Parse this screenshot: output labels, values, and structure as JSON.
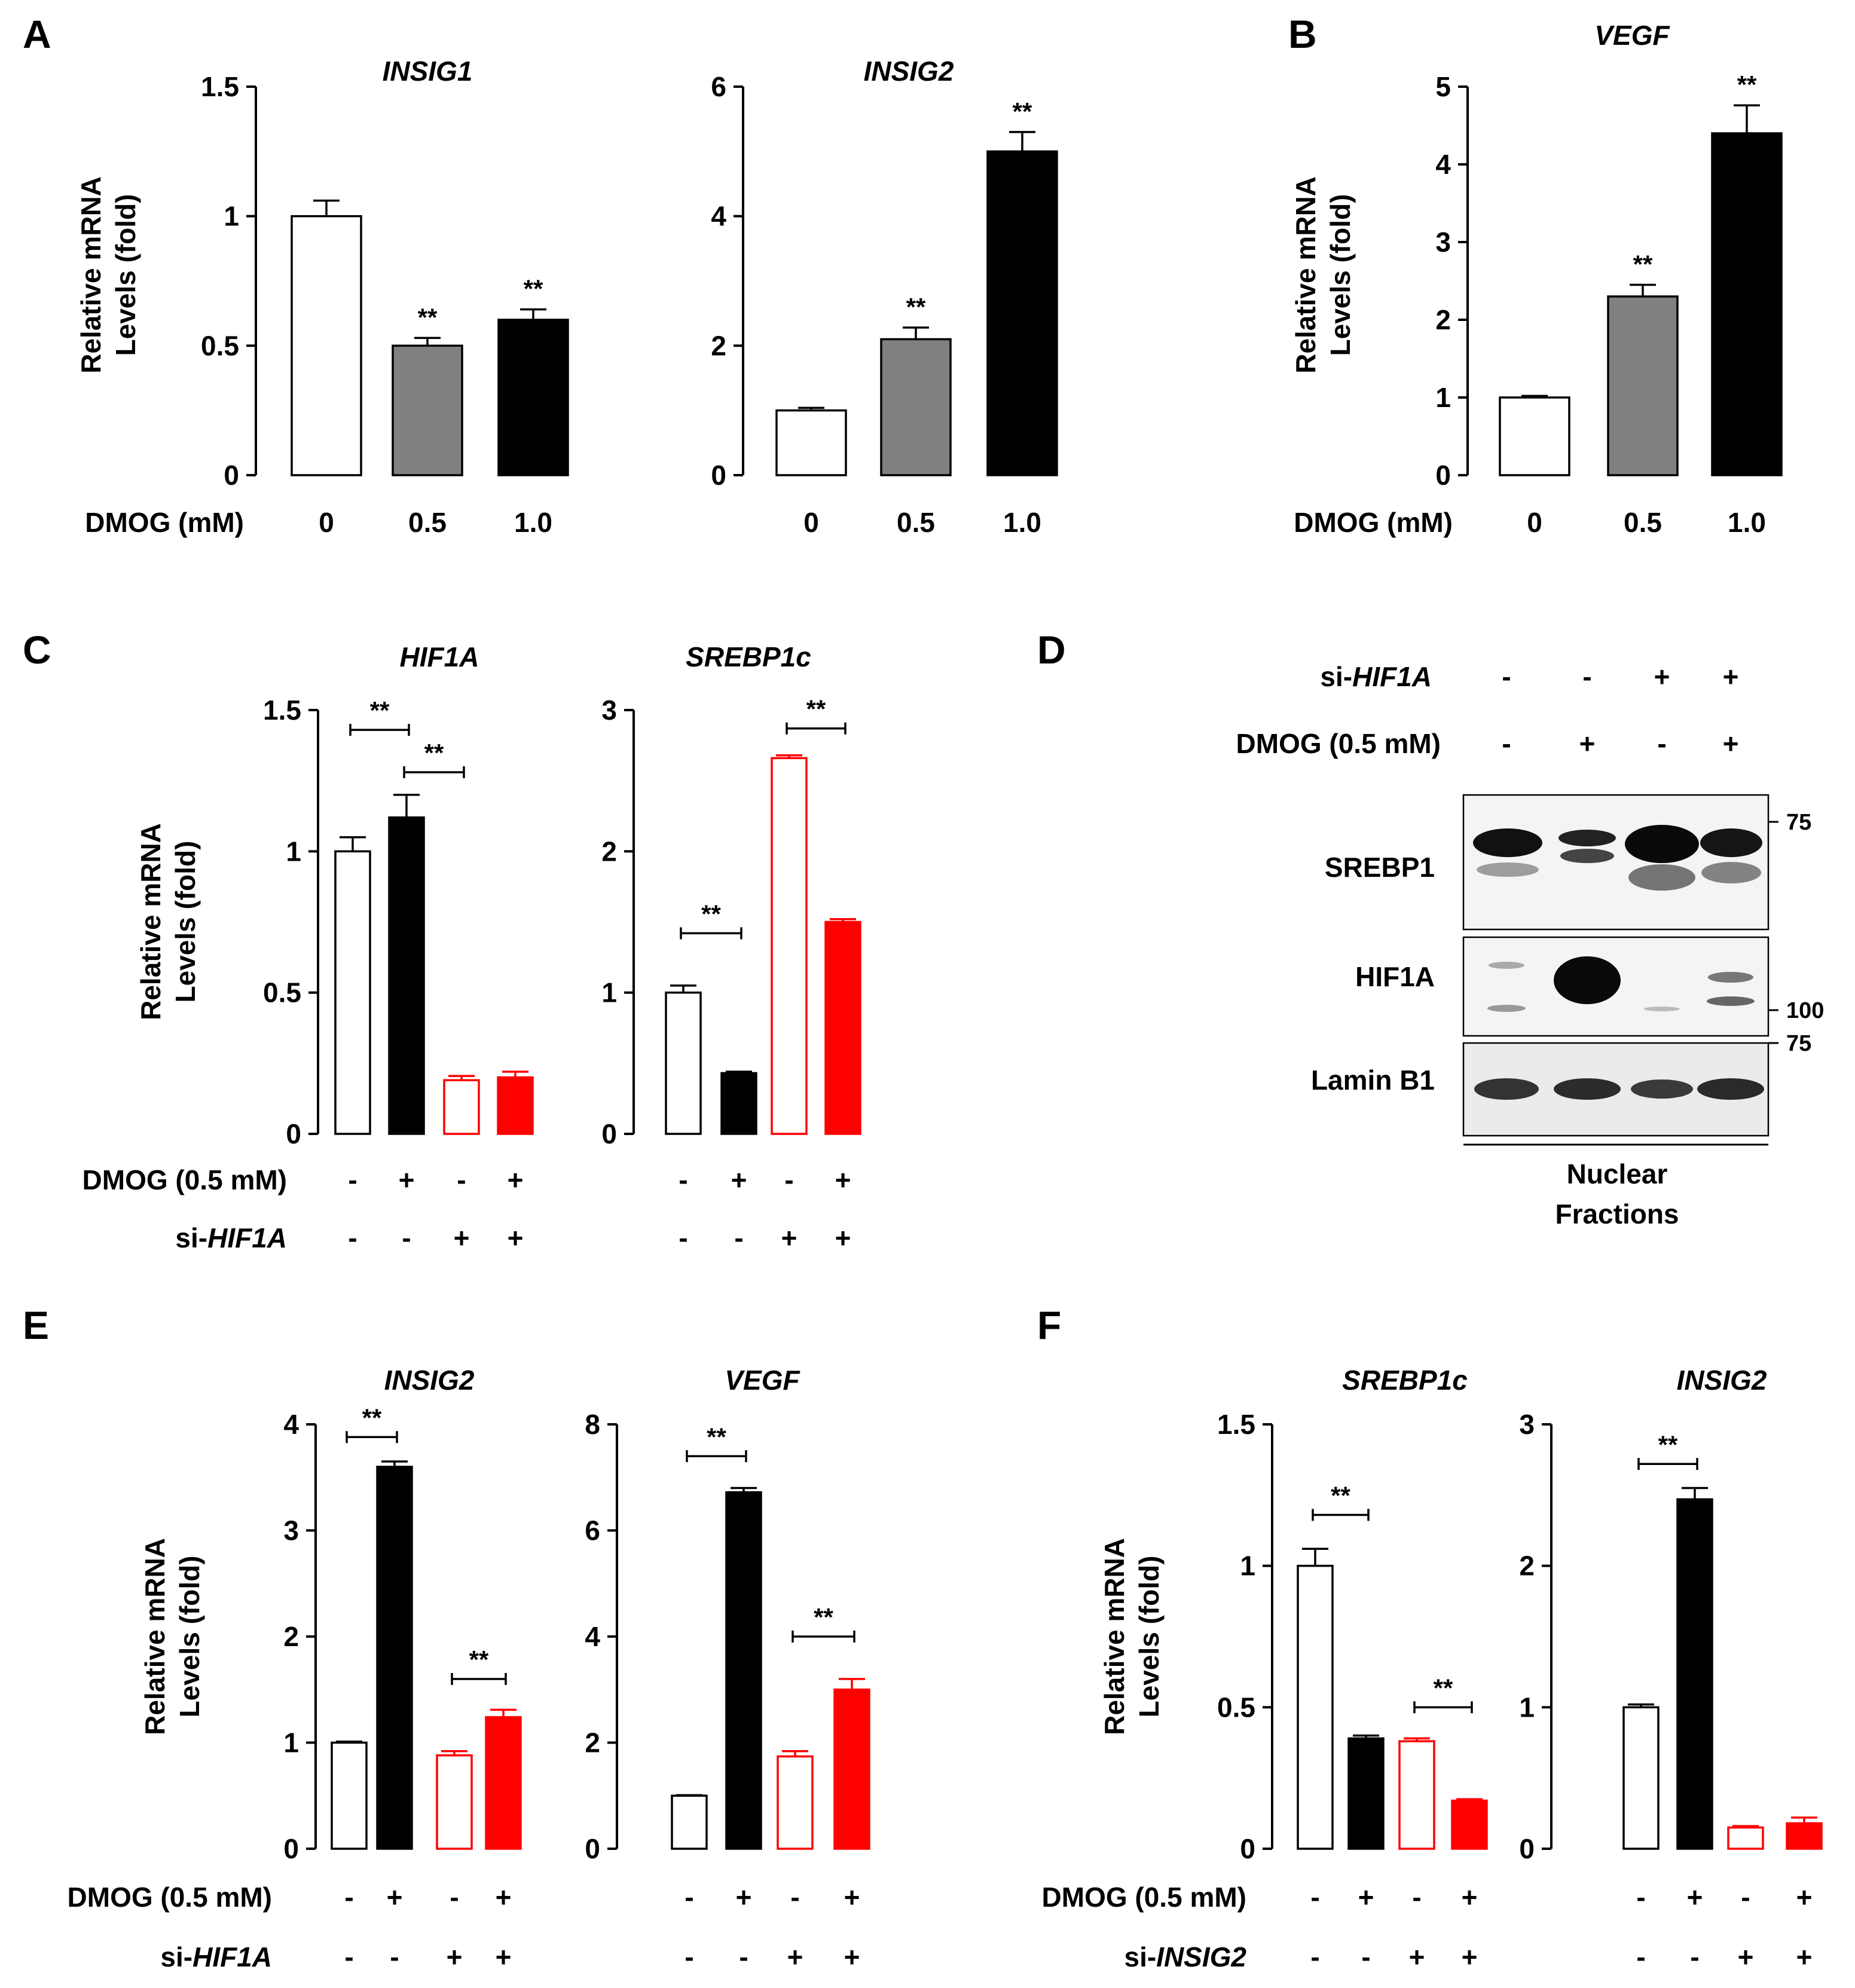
{
  "colors": {
    "black": "#000000",
    "gray": "#808080",
    "red": "#ff0000",
    "white": "#ffffff",
    "blot_bg": "#f2f2f2"
  },
  "common": {
    "ylabel_line1": "Relative mRNA",
    "ylabel_line2": "Levels (fold)",
    "significance": "**"
  },
  "chart_data": [
    {
      "panel": "A",
      "type": "bar",
      "title": "INSIG1",
      "xlabel": "DMOG (mM)",
      "ylabel": "Relative mRNA Levels (fold)",
      "ylim": [
        0,
        1.5
      ],
      "yticks": [
        0,
        0.5,
        1,
        1.5
      ],
      "ytick_labels": [
        "0",
        "0.5",
        "1",
        "1.5"
      ],
      "categories": [
        "0",
        "0.5",
        "1.0"
      ],
      "values": [
        1.0,
        0.5,
        0.6
      ],
      "errors": [
        0.06,
        0.03,
        0.04
      ],
      "fills": [
        "white",
        "gray",
        "black"
      ],
      "stars_above": [
        false,
        true,
        true
      ],
      "brackets": []
    },
    {
      "panel": "A",
      "type": "bar",
      "title": "INSIG2",
      "xlabel": "",
      "ylabel": "",
      "ylim": [
        0,
        6
      ],
      "yticks": [
        0,
        2,
        4,
        6
      ],
      "ytick_labels": [
        "0",
        "2",
        "4",
        "6"
      ],
      "categories": [
        "0",
        "0.5",
        "1.0"
      ],
      "values": [
        1.0,
        2.1,
        5.0
      ],
      "errors": [
        0.04,
        0.18,
        0.3
      ],
      "fills": [
        "white",
        "gray",
        "black"
      ],
      "stars_above": [
        false,
        true,
        true
      ],
      "brackets": []
    },
    {
      "panel": "B",
      "type": "bar",
      "title": "VEGF",
      "xlabel": "DMOG (mM)",
      "ylabel": "Relative mRNA Levels (fold)",
      "ylim": [
        0,
        5
      ],
      "yticks": [
        0,
        1,
        2,
        3,
        4,
        5
      ],
      "ytick_labels": [
        "0",
        "1",
        "2",
        "3",
        "4",
        "5"
      ],
      "categories": [
        "0",
        "0.5",
        "1.0"
      ],
      "values": [
        1.0,
        2.3,
        4.4
      ],
      "errors": [
        0.02,
        0.15,
        0.36
      ],
      "fills": [
        "white",
        "gray",
        "black"
      ],
      "stars_above": [
        false,
        true,
        true
      ],
      "brackets": []
    },
    {
      "panel": "C",
      "type": "bar",
      "title": "HIF1A",
      "ylabel": "Relative mRNA Levels (fold)",
      "ylim": [
        0,
        1.5
      ],
      "yticks": [
        0,
        0.5,
        1,
        1.5
      ],
      "ytick_labels": [
        "0",
        "0.5",
        "1",
        "1.5"
      ],
      "condition_labels": [
        "DMOG (0.5 mM)",
        "si-HIF1A"
      ],
      "dmog": [
        "-",
        "+",
        "-",
        "+"
      ],
      "si": [
        "-",
        "-",
        "+",
        "+"
      ],
      "values": [
        1.0,
        1.12,
        0.19,
        0.2
      ],
      "errors": [
        0.05,
        0.08,
        0.015,
        0.02
      ],
      "fills": [
        "open-black",
        "black",
        "open-red",
        "red"
      ],
      "brackets": [
        {
          "from": 0,
          "to": 1,
          "level": 1.43,
          "label": "**"
        },
        {
          "from": 1,
          "to": 2,
          "level": 1.28,
          "label": "**"
        }
      ]
    },
    {
      "panel": "C",
      "type": "bar",
      "title": "SREBP1c",
      "ylim": [
        0,
        3
      ],
      "yticks": [
        0,
        1,
        2,
        3
      ],
      "ytick_labels": [
        "0",
        "1",
        "2",
        "3"
      ],
      "dmog": [
        "-",
        "+",
        "-",
        "+"
      ],
      "si": [
        "-",
        "-",
        "+",
        "+"
      ],
      "values": [
        1.0,
        0.43,
        2.66,
        1.5
      ],
      "errors": [
        0.05,
        0.01,
        0.02,
        0.02
      ],
      "fills": [
        "open-black",
        "black",
        "open-red",
        "red"
      ],
      "brackets": [
        {
          "from": 0,
          "to": 1,
          "level": 1.42,
          "label": "**"
        },
        {
          "from": 2,
          "to": 3,
          "level": 2.87,
          "label": "**"
        }
      ]
    },
    {
      "panel": "E",
      "type": "bar",
      "title": "INSIG2",
      "ylabel": "Relative mRNA Levels (fold)",
      "ylim": [
        0,
        4
      ],
      "yticks": [
        0,
        1,
        2,
        3,
        4
      ],
      "ytick_labels": [
        "0",
        "1",
        "2",
        "3",
        "4"
      ],
      "condition_labels": [
        "DMOG (0.5 mM)",
        "si-HIF1A"
      ],
      "dmog": [
        "-",
        "+",
        "-",
        "+"
      ],
      "si": [
        "-",
        "-",
        "+",
        "+"
      ],
      "values": [
        1.0,
        3.6,
        0.88,
        1.24
      ],
      "errors": [
        0.01,
        0.05,
        0.04,
        0.07
      ],
      "fills": [
        "open-black",
        "black",
        "open-red",
        "red"
      ],
      "brackets": [
        {
          "from": 0,
          "to": 1,
          "level": 3.88,
          "label": "**"
        },
        {
          "from": 2,
          "to": 3,
          "level": 1.6,
          "label": "**"
        }
      ]
    },
    {
      "panel": "E",
      "type": "bar",
      "title": "VEGF",
      "ylim": [
        0,
        8
      ],
      "yticks": [
        0,
        2,
        4,
        6,
        8
      ],
      "ytick_labels": [
        "0",
        "2",
        "4",
        "6",
        "8"
      ],
      "dmog": [
        "-",
        "+",
        "-",
        "+"
      ],
      "si": [
        "-",
        "-",
        "+",
        "+"
      ],
      "values": [
        1.0,
        6.72,
        1.74,
        3.0
      ],
      "errors": [
        0.01,
        0.08,
        0.1,
        0.2
      ],
      "fills": [
        "open-black",
        "black",
        "open-red",
        "red"
      ],
      "brackets": [
        {
          "from": 0,
          "to": 1,
          "level": 7.4,
          "label": "**"
        },
        {
          "from": 2,
          "to": 3,
          "level": 4.0,
          "label": "**"
        }
      ]
    },
    {
      "panel": "F",
      "type": "bar",
      "title": "SREBP1c",
      "ylabel": "Relative mRNA Levels (fold)",
      "ylim": [
        0,
        1.5
      ],
      "yticks": [
        0,
        0.5,
        1,
        1.5
      ],
      "ytick_labels": [
        "0",
        "0.5",
        "1",
        "1.5"
      ],
      "condition_labels": [
        "DMOG (0.5 mM)",
        "si-INSIG2"
      ],
      "dmog": [
        "-",
        "+",
        "-",
        "+"
      ],
      "si": [
        "-",
        "-",
        "+",
        "+"
      ],
      "values": [
        1.0,
        0.39,
        0.38,
        0.17
      ],
      "errors": [
        0.06,
        0.01,
        0.01,
        0.005
      ],
      "fills": [
        "open-black",
        "black",
        "open-red",
        "red"
      ],
      "brackets": [
        {
          "from": 0,
          "to": 1,
          "level": 1.18,
          "label": "**"
        },
        {
          "from": 2,
          "to": 3,
          "level": 0.5,
          "label": "**"
        }
      ]
    },
    {
      "panel": "F",
      "type": "bar",
      "title": "INSIG2",
      "ylim": [
        0,
        3
      ],
      "yticks": [
        0,
        1,
        2,
        3
      ],
      "ytick_labels": [
        "0",
        "1",
        "2",
        "3"
      ],
      "dmog": [
        "-",
        "+",
        "-",
        "+"
      ],
      "si": [
        "-",
        "-",
        "+",
        "+"
      ],
      "values": [
        1.0,
        2.47,
        0.15,
        0.18
      ],
      "errors": [
        0.02,
        0.08,
        0.01,
        0.04
      ],
      "fills": [
        "open-black",
        "black",
        "open-red",
        "red"
      ],
      "brackets": [
        {
          "from": 0,
          "to": 1,
          "level": 2.72,
          "label": "**"
        }
      ]
    }
  ],
  "western_blot": {
    "panel": "D",
    "si_label_prefix": "si-",
    "si_label_gene": "HIF1A",
    "dmog_label": "DMOG (0.5 mM)",
    "si_signs": [
      "-",
      "-",
      "+",
      "+"
    ],
    "dmog_signs": [
      "-",
      "+",
      "-",
      "+"
    ],
    "rows": [
      "SREBP1",
      "HIF1A",
      "Lamin B1"
    ],
    "markers": [
      "75",
      "100",
      "75"
    ],
    "fraction_line1": "Nuclear",
    "fraction_line2": "Fractions"
  }
}
